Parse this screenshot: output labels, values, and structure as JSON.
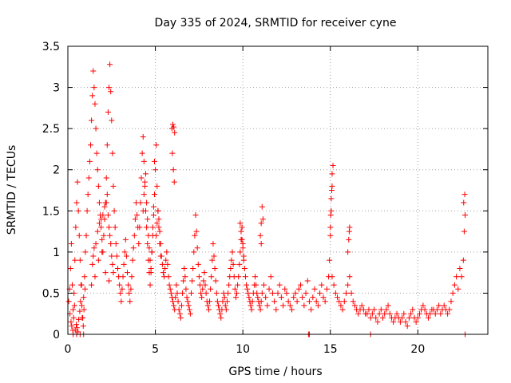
{
  "chart_data": {
    "type": "scatter",
    "title": "Day 335 of 2024, SRMTID for receiver cyne",
    "xlabel": "GPS time / hours",
    "ylabel": "SRMTID / TECUs",
    "xlim": [
      0,
      24
    ],
    "ylim": [
      0,
      3.5
    ],
    "xticks": [
      0,
      5,
      10,
      15,
      20
    ],
    "yticks": [
      0,
      0.5,
      1,
      1.5,
      2,
      2.5,
      3,
      3.5
    ],
    "ytick_labels": [
      "0",
      "0.5",
      "1",
      "1.5",
      "2",
      "2.5",
      "3",
      "3.5"
    ],
    "grid": true,
    "marker": "+",
    "color": "#ff0000",
    "series": [
      {
        "name": "SRMTID",
        "x": [
          0.05,
          0.1,
          0.15,
          0.2,
          0.25,
          0.3,
          0.35,
          0.4,
          0.45,
          0.5,
          0.55,
          0.6,
          0.65,
          0.7,
          0.75,
          0.8,
          0.85,
          0.9,
          0.95,
          1.0,
          0.12,
          0.18,
          0.22,
          0.28,
          0.33,
          0.38,
          0.42,
          0.48,
          0.52,
          0.58,
          0.62,
          0.68,
          0.72,
          0.78,
          0.82,
          0.88,
          0.92,
          0.98,
          1.05,
          1.1,
          1.15,
          1.2,
          1.25,
          1.3,
          1.35,
          1.4,
          1.45,
          1.5,
          1.55,
          1.6,
          1.65,
          1.7,
          1.75,
          1.8,
          1.85,
          1.9,
          1.95,
          2.0,
          2.05,
          2.1,
          2.15,
          2.2,
          2.25,
          2.3,
          2.35,
          2.4,
          2.45,
          2.5,
          2.55,
          2.6,
          2.65,
          2.7,
          2.75,
          2.8,
          2.85,
          2.9,
          2.95,
          3.0,
          1.4,
          1.45,
          1.5,
          1.6,
          1.7,
          1.8,
          1.9,
          2.0,
          2.1,
          2.2,
          2.25,
          2.3,
          2.35,
          2.4,
          2.45,
          2.5,
          2.55,
          2.6,
          1.35,
          1.55,
          1.75,
          1.95,
          2.15,
          2.35,
          3.05,
          3.1,
          3.15,
          3.2,
          3.25,
          3.3,
          3.35,
          3.4,
          3.45,
          3.5,
          3.55,
          3.6,
          3.65,
          3.7,
          3.75,
          3.8,
          3.85,
          3.9,
          3.95,
          4.0,
          4.05,
          4.1,
          4.15,
          4.2,
          4.25,
          4.3,
          4.35,
          4.4,
          4.45,
          4.5,
          4.55,
          4.6,
          4.65,
          4.7,
          4.75,
          4.8,
          4.85,
          4.9,
          4.95,
          5.0,
          4.3,
          4.35,
          4.4,
          4.45,
          4.5,
          4.55,
          4.6,
          4.65,
          4.7,
          4.75,
          4.8,
          4.85,
          4.9,
          4.95,
          5.05,
          5.1,
          5.15,
          5.2,
          5.25,
          5.3,
          5.05,
          5.1,
          5.15,
          5.2,
          5.25,
          5.3,
          5.35,
          5.4,
          5.45,
          5.5,
          5.55,
          5.6,
          5.65,
          5.7,
          5.75,
          5.8,
          5.85,
          5.9,
          5.95,
          6.0,
          5.95,
          6.0,
          6.05,
          6.1,
          5.97,
          6.03,
          6.08,
          6.05,
          6.1,
          6.15,
          6.2,
          6.25,
          6.3,
          6.35,
          6.4,
          6.45,
          6.5,
          6.55,
          6.6,
          6.65,
          6.7,
          6.75,
          6.8,
          6.85,
          6.9,
          6.95,
          7.0,
          7.05,
          7.1,
          7.15,
          7.2,
          7.25,
          7.3,
          7.35,
          7.4,
          7.45,
          7.5,
          7.55,
          7.6,
          7.65,
          7.7,
          7.75,
          7.8,
          7.85,
          7.9,
          7.95,
          8.0,
          8.05,
          8.1,
          8.15,
          8.2,
          8.25,
          8.3,
          8.35,
          8.4,
          8.45,
          8.5,
          8.55,
          8.6,
          8.65,
          8.7,
          8.75,
          8.8,
          8.85,
          8.9,
          8.95,
          9.0,
          9.05,
          9.1,
          9.15,
          9.2,
          9.25,
          9.3,
          9.35,
          9.4,
          9.45,
          9.5,
          9.55,
          9.6,
          9.65,
          9.7,
          9.75,
          9.8,
          9.85,
          9.9,
          9.95,
          10.0,
          9.85,
          9.9,
          9.95,
          10.0,
          10.05,
          10.05,
          10.1,
          10.15,
          10.2,
          10.25,
          10.3,
          10.35,
          10.4,
          10.45,
          10.5,
          10.55,
          10.6,
          10.65,
          10.7,
          10.75,
          10.8,
          10.85,
          10.9,
          10.95,
          11.0,
          11.0,
          11.05,
          11.1,
          11.15,
          11.05,
          11.05,
          11.1,
          11.2,
          11.3,
          11.4,
          11.5,
          11.6,
          11.7,
          11.8,
          11.9,
          12.0,
          12.1,
          12.2,
          12.3,
          12.4,
          12.5,
          12.6,
          12.7,
          12.8,
          12.9,
          13.0,
          13.1,
          13.2,
          13.3,
          13.4,
          13.5,
          13.6,
          13.7,
          13.8,
          13.9,
          14.0,
          14.1,
          14.2,
          14.3,
          14.4,
          14.5,
          14.6,
          14.7,
          14.8,
          14.9,
          14.95,
          15.0,
          15.05,
          15.1,
          15.15,
          15.0,
          15.05,
          15.1,
          15.02,
          15.08,
          15.1,
          15.2,
          15.3,
          15.4,
          15.5,
          15.6,
          15.7,
          15.8,
          15.9,
          16.0,
          16.1,
          16.2,
          16.3,
          16.4,
          16.5,
          16.6,
          16.7,
          16.8,
          16.9,
          17.0,
          16.0,
          16.05,
          16.1,
          16.08,
          17.1,
          17.2,
          17.3,
          17.4,
          17.5,
          17.6,
          17.7,
          17.8,
          17.9,
          18.0,
          18.1,
          18.2,
          18.3,
          18.4,
          18.5,
          18.6,
          18.7,
          18.8,
          18.9,
          19.0,
          19.1,
          19.2,
          19.3,
          19.4,
          19.5,
          19.6,
          19.7,
          19.8,
          19.9,
          20.0,
          20.1,
          20.2,
          20.3,
          20.4,
          20.5,
          20.6,
          20.7,
          20.8,
          20.9,
          21.0,
          21.1,
          21.2,
          21.3,
          21.4,
          21.5,
          21.6,
          21.7,
          21.8,
          21.9,
          22.0,
          22.1,
          22.2,
          22.3,
          22.4,
          22.5,
          22.6,
          22.65,
          22.7,
          22.62,
          22.68,
          0.3,
          0.5,
          0.7,
          0.9,
          13.75,
          13.8,
          17.3,
          22.7
        ],
        "y": [
          0.4,
          0.55,
          0.8,
          1.1,
          0.6,
          0.3,
          0.5,
          0.9,
          1.3,
          1.6,
          1.85,
          1.5,
          1.2,
          0.9,
          0.6,
          0.35,
          0.2,
          0.45,
          0.7,
          1.0,
          0.25,
          0.15,
          0.1,
          0.05,
          0.2,
          0.35,
          0.05,
          0.12,
          0.08,
          0.03,
          0.18,
          0.28,
          0.4,
          0.6,
          0.2,
          0.1,
          0.3,
          0.55,
          1.2,
          1.5,
          1.7,
          1.9,
          2.1,
          2.3,
          2.6,
          2.9,
          3.2,
          3.0,
          2.8,
          2.5,
          2.2,
          2.0,
          1.8,
          1.6,
          1.45,
          1.3,
          1.15,
          1.0,
          1.2,
          1.4,
          1.6,
          1.9,
          2.3,
          2.7,
          3.0,
          3.28,
          2.95,
          2.6,
          2.2,
          1.8,
          1.5,
          1.3,
          1.1,
          0.95,
          0.8,
          0.7,
          0.6,
          0.5,
          0.85,
          0.95,
          1.05,
          1.1,
          1.25,
          1.35,
          1.4,
          1.45,
          1.55,
          1.6,
          1.7,
          1.45,
          1.3,
          1.2,
          1.1,
          0.95,
          0.85,
          0.75,
          0.6,
          0.7,
          0.9,
          1.0,
          0.75,
          0.65,
          0.4,
          0.55,
          0.7,
          0.85,
          1.0,
          1.15,
          0.95,
          0.75,
          0.6,
          0.5,
          0.4,
          0.55,
          0.7,
          0.9,
          1.05,
          1.2,
          1.4,
          1.6,
          1.45,
          1.3,
          1.1,
          1.3,
          1.6,
          1.9,
          2.2,
          2.4,
          2.1,
          1.8,
          1.5,
          1.3,
          1.1,
          0.9,
          0.75,
          0.6,
          0.8,
          1.0,
          1.2,
          1.45,
          1.7,
          2.0,
          1.5,
          1.7,
          1.85,
          1.95,
          1.6,
          1.4,
          1.2,
          1.05,
          0.9,
          0.75,
          1.0,
          1.3,
          1.55,
          2.1,
          2.3,
          1.8,
          1.5,
          1.3,
          1.1,
          0.95,
          1.2,
          1.35,
          1.5,
          1.4,
          1.25,
          1.1,
          0.95,
          0.85,
          0.75,
          0.7,
          0.8,
          0.9,
          1.0,
          0.85,
          0.7,
          0.6,
          0.55,
          0.5,
          0.45,
          0.4,
          2.5,
          2.55,
          2.52,
          2.45,
          2.2,
          2.0,
          1.85,
          0.35,
          0.3,
          0.45,
          0.6,
          0.5,
          0.4,
          0.3,
          0.25,
          0.2,
          0.35,
          0.5,
          0.65,
          0.8,
          0.7,
          0.55,
          0.45,
          0.4,
          0.35,
          0.3,
          0.25,
          0.5,
          0.65,
          0.8,
          1.0,
          1.2,
          1.45,
          1.25,
          1.05,
          0.85,
          0.7,
          0.6,
          0.5,
          0.45,
          0.55,
          0.65,
          0.75,
          0.6,
          0.5,
          0.4,
          0.35,
          0.3,
          0.4,
          0.55,
          0.7,
          0.9,
          1.1,
          0.95,
          0.8,
          0.65,
          0.5,
          0.4,
          0.35,
          0.3,
          0.25,
          0.2,
          0.3,
          0.4,
          0.5,
          0.45,
          0.35,
          0.3,
          0.4,
          0.5,
          0.6,
          0.7,
          0.8,
          0.9,
          1.0,
          0.85,
          0.7,
          0.55,
          0.45,
          0.5,
          0.6,
          0.7,
          0.85,
          1.0,
          1.15,
          1.3,
          1.1,
          1.35,
          1.25,
          1.15,
          1.05,
          0.95,
          0.9,
          0.8,
          0.7,
          0.6,
          0.55,
          0.5,
          0.45,
          0.4,
          0.35,
          0.3,
          0.4,
          0.5,
          0.6,
          0.7,
          0.6,
          0.5,
          0.45,
          0.4,
          0.35,
          0.3,
          1.2,
          1.35,
          1.55,
          1.4,
          1.1,
          0.4,
          0.5,
          0.6,
          0.45,
          0.35,
          0.55,
          0.7,
          0.5,
          0.4,
          0.3,
          0.5,
          0.6,
          0.45,
          0.35,
          0.55,
          0.5,
          0.4,
          0.35,
          0.3,
          0.45,
          0.5,
          0.4,
          0.55,
          0.6,
          0.45,
          0.35,
          0.5,
          0.65,
          0.4,
          0.3,
          0.45,
          0.55,
          0.4,
          0.35,
          0.5,
          0.6,
          0.45,
          0.4,
          0.55,
          0.7,
          0.9,
          1.2,
          1.5,
          1.8,
          2.05,
          1.3,
          1.65,
          1.95,
          1.45,
          1.75,
          0.7,
          0.6,
          0.5,
          0.45,
          0.4,
          0.35,
          0.3,
          0.4,
          0.5,
          0.6,
          0.7,
          0.5,
          0.4,
          0.35,
          0.3,
          0.25,
          0.3,
          0.35,
          0.3,
          0.25,
          1.0,
          1.15,
          1.3,
          1.25,
          0.25,
          0.3,
          0.2,
          0.25,
          0.3,
          0.2,
          0.15,
          0.25,
          0.3,
          0.2,
          0.25,
          0.3,
          0.35,
          0.25,
          0.2,
          0.15,
          0.2,
          0.25,
          0.2,
          0.15,
          0.2,
          0.25,
          0.15,
          0.1,
          0.2,
          0.25,
          0.3,
          0.2,
          0.15,
          0.2,
          0.25,
          0.3,
          0.35,
          0.3,
          0.25,
          0.2,
          0.25,
          0.3,
          0.3,
          0.25,
          0.3,
          0.35,
          0.25,
          0.3,
          0.35,
          0.3,
          0.25,
          0.3,
          0.4,
          0.5,
          0.6,
          0.7,
          0.55,
          0.8,
          0.7,
          0.9,
          1.25,
          1.45,
          1.6,
          1.7,
          0.0,
          0.0,
          0.0,
          0.0,
          0.0,
          0.0,
          0.0,
          0.0
        ]
      }
    ]
  }
}
